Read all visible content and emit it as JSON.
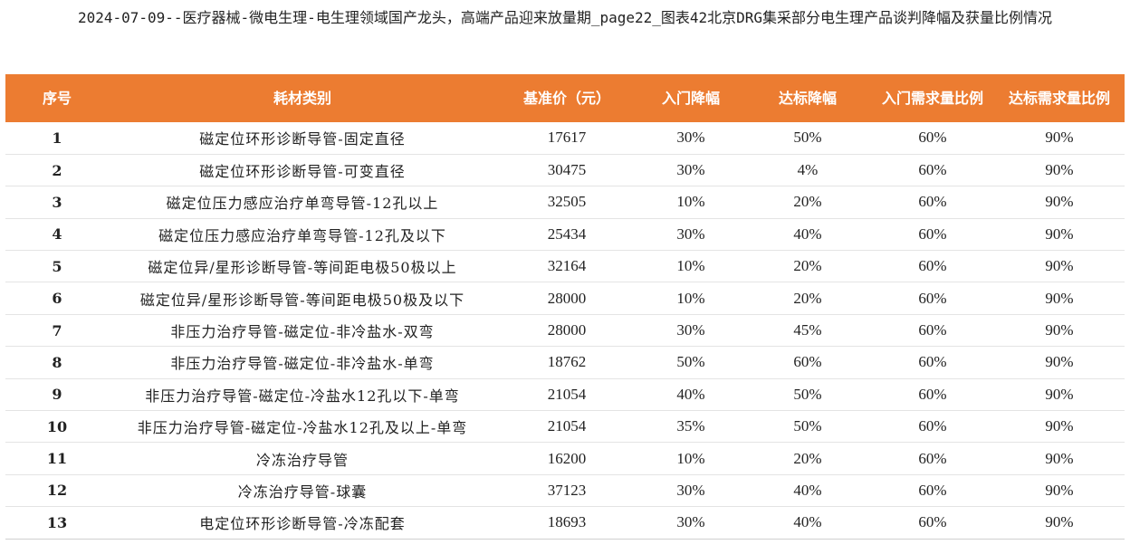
{
  "title": "2024-07-09--医疗器械-微电生理-电生理领域国产龙头，高端产品迎来放量期_page22_图表42北京DRG集采部分电生理产品谈判降幅及获量比例情况",
  "colors": {
    "header_bg": "#ec7c31",
    "header_text": "#ffffff"
  },
  "chart_data": {
    "type": "table",
    "title": "2024-07-09--医疗器械-微电生理-电生理领域国产龙头，高端产品迎来放量期_page22_图表42北京DRG集采部分电生理产品谈判降幅及获量比例情况",
    "columns": [
      "序号",
      "耗材类别",
      "基准价（元）",
      "入门降幅",
      "达标降幅",
      "入门需求量比例",
      "达标需求量比例"
    ],
    "rows": [
      [
        "1",
        "磁定位环形诊断导管-固定直径",
        "17617",
        "30%",
        "50%",
        "60%",
        "90%"
      ],
      [
        "2",
        "磁定位环形诊断导管-可变直径",
        "30475",
        "30%",
        "4%",
        "60%",
        "90%"
      ],
      [
        "3",
        "磁定位压力感应治疗单弯导管-12孔以上",
        "32505",
        "10%",
        "20%",
        "60%",
        "90%"
      ],
      [
        "4",
        "磁定位压力感应治疗单弯导管-12孔及以下",
        "25434",
        "30%",
        "40%",
        "60%",
        "90%"
      ],
      [
        "5",
        "磁定位异/星形诊断导管-等间距电极50极以上",
        "32164",
        "10%",
        "20%",
        "60%",
        "90%"
      ],
      [
        "6",
        "磁定位异/星形诊断导管-等间距电极50极及以下",
        "28000",
        "10%",
        "20%",
        "60%",
        "90%"
      ],
      [
        "7",
        "非压力治疗导管-磁定位-非冷盐水-双弯",
        "28000",
        "30%",
        "45%",
        "60%",
        "90%"
      ],
      [
        "8",
        "非压力治疗导管-磁定位-非冷盐水-单弯",
        "18762",
        "50%",
        "60%",
        "60%",
        "90%"
      ],
      [
        "9",
        "非压力治疗导管-磁定位-冷盐水12孔以下-单弯",
        "21054",
        "40%",
        "50%",
        "60%",
        "90%"
      ],
      [
        "10",
        "非压力治疗导管-磁定位-冷盐水12孔及以上-单弯",
        "21054",
        "35%",
        "50%",
        "60%",
        "90%"
      ],
      [
        "11",
        "冷冻治疗导管",
        "16200",
        "10%",
        "20%",
        "60%",
        "90%"
      ],
      [
        "12",
        "冷冻治疗导管-球囊",
        "37123",
        "30%",
        "40%",
        "60%",
        "90%"
      ],
      [
        "13",
        "电定位环形诊断导管-冷冻配套",
        "18693",
        "30%",
        "40%",
        "60%",
        "90%"
      ]
    ]
  }
}
